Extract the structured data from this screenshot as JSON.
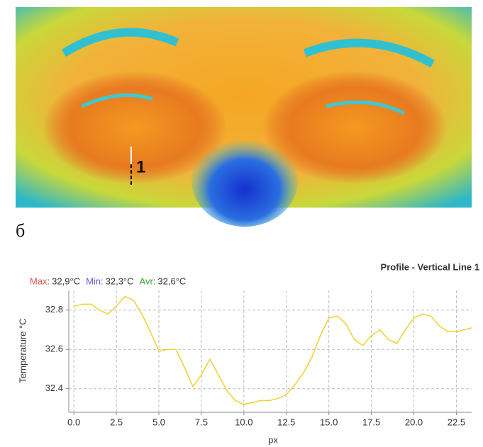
{
  "panel_label": "б",
  "thermal_image": {
    "marker_label": "1"
  },
  "chart_data": {
    "type": "line",
    "title": "Profile - Vertical Line 1",
    "stats": [
      {
        "label": "Max:",
        "value": "32,9°C",
        "color": "#d9534f"
      },
      {
        "label": "Min:",
        "value": "32,3°C",
        "color": "#5b5bd6"
      },
      {
        "label": "Avr:",
        "value": "32,6°C",
        "color": "#3aa63a"
      }
    ],
    "y_label": "Temperature °C",
    "x_label": "px",
    "x": [
      0,
      0.5,
      1,
      1.5,
      2,
      2.5,
      3,
      3.5,
      4,
      4.5,
      5,
      5.5,
      6,
      6.5,
      7,
      7.5,
      8,
      8.5,
      9,
      9.5,
      10,
      10.5,
      11,
      11.5,
      12,
      12.5,
      13,
      13.5,
      14,
      14.5,
      15,
      15.5,
      16,
      16.5,
      17,
      17.5,
      18,
      18.5,
      19,
      19.5,
      20,
      20.5,
      21,
      21.5,
      22,
      22.5,
      23,
      23.4
    ],
    "series": [
      {
        "color": "#f0d030",
        "values": [
          32.82,
          32.83,
          32.83,
          32.8,
          32.78,
          32.82,
          32.87,
          32.85,
          32.78,
          32.69,
          32.59,
          32.6,
          32.6,
          32.51,
          32.41,
          32.47,
          32.55,
          32.47,
          32.39,
          32.34,
          32.32,
          32.33,
          32.34,
          32.34,
          32.35,
          32.37,
          32.42,
          32.48,
          32.56,
          32.67,
          32.76,
          32.77,
          32.73,
          32.65,
          32.62,
          32.67,
          32.7,
          32.65,
          32.63,
          32.7,
          32.76,
          32.78,
          32.77,
          32.72,
          32.69,
          32.69,
          32.7,
          32.71
        ]
      }
    ],
    "xlim": [
      -0.3,
      23.4
    ],
    "ylim": [
      32.28,
      32.9
    ],
    "xticks": [
      {
        "value": 0,
        "label": "0.0"
      },
      {
        "value": 2.5,
        "label": "2.5"
      },
      {
        "value": 5,
        "label": "5.0"
      },
      {
        "value": 7.5,
        "label": "7.5"
      },
      {
        "value": 10,
        "label": "10.0"
      },
      {
        "value": 12.5,
        "label": "12.5"
      },
      {
        "value": 15,
        "label": "15.0"
      },
      {
        "value": 17.5,
        "label": "17.5"
      },
      {
        "value": 20,
        "label": "20.0"
      },
      {
        "value": 22.5,
        "label": "22.5"
      }
    ],
    "yticks": [
      32.4,
      32.6,
      32.8
    ],
    "grid": true
  }
}
